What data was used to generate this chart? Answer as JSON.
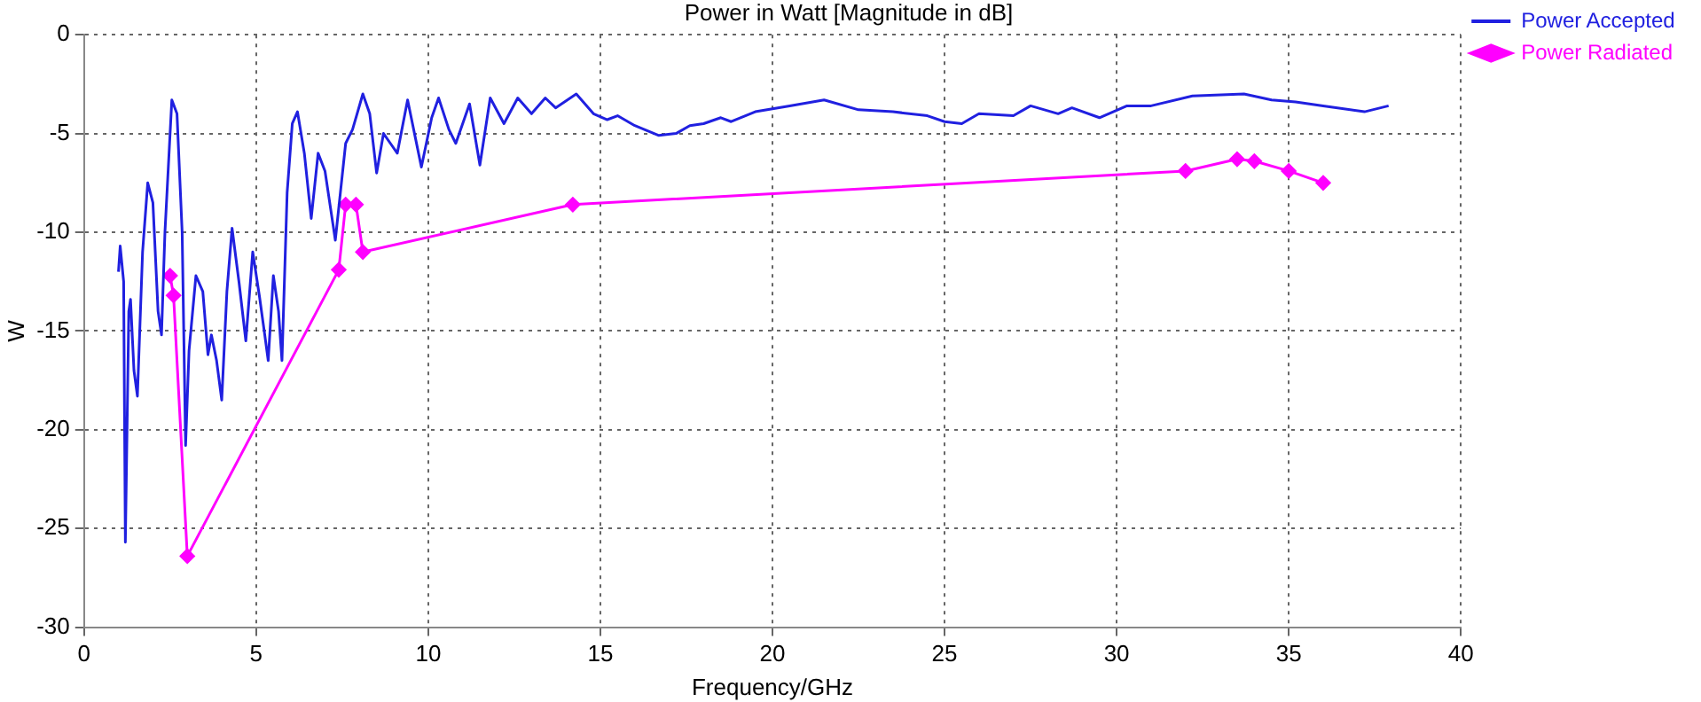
{
  "chart_data": {
    "type": "line",
    "title": "Power in Watt [Magnitude in dB]",
    "xlabel": "Frequency/GHz",
    "ylabel": "W",
    "xlim": [
      0,
      40
    ],
    "xticks": [
      0,
      5,
      10,
      15,
      20,
      25,
      30,
      35,
      40
    ],
    "ylim": [
      -30,
      0
    ],
    "yticks": [
      -30,
      -25,
      -20,
      -15,
      -10,
      -5,
      0
    ],
    "grid": true,
    "legend": "top right",
    "series": [
      {
        "name": "Power Accepted",
        "color": "#2020e0",
        "marker": "none",
        "x": [
          1.0,
          1.05,
          1.15,
          1.2,
          1.3,
          1.35,
          1.45,
          1.55,
          1.7,
          1.85,
          2.0,
          2.15,
          2.25,
          2.35,
          2.55,
          2.7,
          2.85,
          2.95,
          3.05,
          3.25,
          3.45,
          3.6,
          3.7,
          3.85,
          4.0,
          4.15,
          4.3,
          4.5,
          4.7,
          4.9,
          5.1,
          5.25,
          5.35,
          5.5,
          5.65,
          5.75,
          5.9,
          6.05,
          6.2,
          6.4,
          6.6,
          6.8,
          7.0,
          7.3,
          7.6,
          7.8,
          8.1,
          8.3,
          8.5,
          8.7,
          8.9,
          9.1,
          9.4,
          9.6,
          9.8,
          10.1,
          10.3,
          10.6,
          10.8,
          11.2,
          11.5,
          11.8,
          12.2,
          12.6,
          13.0,
          13.4,
          13.7,
          14.3,
          14.8,
          15.2,
          15.5,
          16.0,
          16.7,
          17.2,
          17.6,
          18.0,
          18.5,
          18.8,
          19.5,
          20.5,
          21.5,
          22.5,
          23.5,
          24.5,
          25.0,
          25.5,
          26.0,
          27.0,
          27.5,
          28.3,
          28.7,
          29.5,
          30.3,
          31.0,
          32.2,
          33.7,
          34.5,
          35.2,
          36.0,
          37.2,
          37.9
        ],
        "values": [
          -12,
          -10.7,
          -12.5,
          -25.7,
          -14,
          -13.4,
          -17,
          -18.3,
          -11,
          -7.5,
          -8.5,
          -14,
          -15.2,
          -10,
          -3.3,
          -4,
          -10,
          -20.8,
          -16,
          -12.2,
          -13,
          -16.2,
          -15.2,
          -16.5,
          -18.5,
          -13,
          -9.8,
          -12.5,
          -15.5,
          -11,
          -13.3,
          -15.2,
          -16.5,
          -12.2,
          -14,
          -16.5,
          -8,
          -4.5,
          -3.9,
          -6,
          -9.3,
          -6,
          -6.9,
          -10.4,
          -5.5,
          -4.8,
          -3,
          -4,
          -7,
          -5,
          -5.5,
          -6,
          -3.3,
          -5,
          -6.7,
          -4.2,
          -3.2,
          -4.8,
          -5.5,
          -3.5,
          -6.6,
          -3.2,
          -4.5,
          -3.2,
          -4,
          -3.2,
          -3.7,
          -3,
          -4,
          -4.3,
          -4.1,
          -4.6,
          -5.1,
          -5.0,
          -4.6,
          -4.5,
          -4.2,
          -4.4,
          -3.9,
          -3.6,
          -3.3,
          -3.8,
          -3.9,
          -4.1,
          -4.4,
          -4.5,
          -4.0,
          -4.1,
          -3.6,
          -4.0,
          -3.7,
          -4.2,
          -3.6,
          -3.6,
          -3.1,
          -3.0,
          -3.3,
          -3.4,
          -3.6,
          -3.9,
          -3.6
        ]
      },
      {
        "name": "Power Radiated",
        "color": "#ff00ff",
        "marker": "diamond",
        "x": [
          2.5,
          2.6,
          3.0,
          7.4,
          7.6,
          7.9,
          8.1,
          14.2,
          32.0,
          33.5,
          34.0,
          35.0,
          36.0
        ],
        "values": [
          -12.2,
          -13.2,
          -26.4,
          -11.9,
          -8.6,
          -8.6,
          -11.0,
          -8.6,
          -6.9,
          -6.3,
          -6.4,
          -6.9,
          -7.5
        ]
      }
    ]
  }
}
